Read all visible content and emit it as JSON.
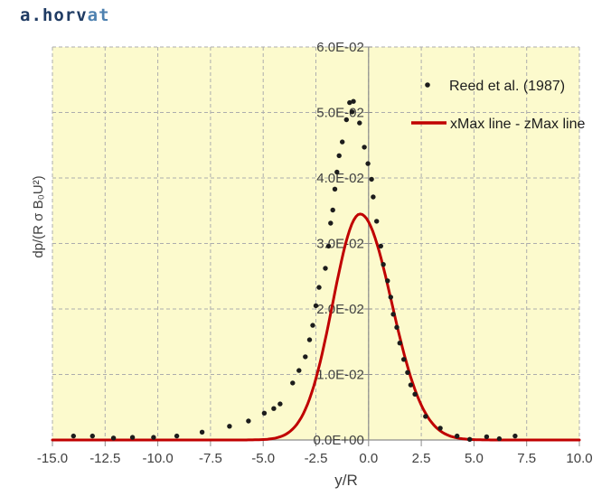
{
  "watermark": {
    "part1": "a.horv",
    "part2": "at"
  },
  "colors": {
    "plot_bg": "#FCFACD",
    "grid": "#ADADAD",
    "axis": "#8C8C8C",
    "tick_text": "#404040",
    "legend_text": "#1C1C1C",
    "marker": "#1C1C1C",
    "line_red": "#C00000",
    "watermark_dark": "#1F3B63",
    "watermark_light": "#4E81B0"
  },
  "chart_data": {
    "type": "scatter",
    "title": "",
    "xlabel": "y/R",
    "ylabel": "dp/(R σ B₀U²)",
    "xlim": [
      -15,
      10
    ],
    "ylim": [
      0,
      0.06
    ],
    "grid": "dashed",
    "legend_position": "top-right",
    "x_tick_values": [
      -15.0,
      -12.5,
      -10.0,
      -7.5,
      -5.0,
      -2.5,
      0.0,
      2.5,
      5.0,
      7.5,
      10.0
    ],
    "x_tick_labels": [
      "-15.0",
      "-12.5",
      "-10.0",
      "-7.5",
      "-5.0",
      "-2.5",
      "0.0",
      "2.5",
      "5.0",
      "7.5",
      "10.0"
    ],
    "y_tick_values": [
      0,
      0.01,
      0.02,
      0.03,
      0.04,
      0.05,
      0.06
    ],
    "y_tick_labels": [
      "0.0E+00",
      "1.0E-02",
      "2.0E-02",
      "3.0E-02",
      "4.0E-02",
      "5.0E-02",
      "6.0E-02"
    ],
    "series": [
      {
        "name": "Reed et al. (1987)",
        "type": "scatter",
        "marker": "dot",
        "color": "#1C1C1C",
        "points": [
          [
            -14.0,
            0.0006
          ],
          [
            -13.1,
            0.0006
          ],
          [
            -12.1,
            0.0003
          ],
          [
            -11.2,
            0.0004
          ],
          [
            -10.2,
            0.0004
          ],
          [
            -9.1,
            0.0006
          ],
          [
            -7.9,
            0.0012
          ],
          [
            -6.6,
            0.0021
          ],
          [
            -5.7,
            0.0029
          ],
          [
            -4.95,
            0.0041
          ],
          [
            -4.5,
            0.0048
          ],
          [
            -4.2,
            0.0055
          ],
          [
            -3.6,
            0.0087
          ],
          [
            -3.3,
            0.0106
          ],
          [
            -3.0,
            0.0127
          ],
          [
            -2.8,
            0.0153
          ],
          [
            -2.65,
            0.0175
          ],
          [
            -2.5,
            0.0205
          ],
          [
            -2.35,
            0.0233
          ],
          [
            -2.05,
            0.0262
          ],
          [
            -1.9,
            0.0296
          ],
          [
            -1.8,
            0.0331
          ],
          [
            -1.7,
            0.0351
          ],
          [
            -1.6,
            0.0383
          ],
          [
            -1.5,
            0.0409
          ],
          [
            -1.4,
            0.0434
          ],
          [
            -1.25,
            0.0455
          ],
          [
            -1.05,
            0.0489
          ],
          [
            -0.9,
            0.0515
          ],
          [
            -0.72,
            0.0517
          ],
          [
            -0.78,
            0.0501
          ],
          [
            -0.43,
            0.0484
          ],
          [
            -0.2,
            0.0447
          ],
          [
            -0.03,
            0.0422
          ],
          [
            0.14,
            0.0398
          ],
          [
            0.22,
            0.0371
          ],
          [
            0.38,
            0.0334
          ],
          [
            0.58,
            0.0296
          ],
          [
            0.7,
            0.0268
          ],
          [
            0.9,
            0.0243
          ],
          [
            1.05,
            0.0218
          ],
          [
            1.17,
            0.0192
          ],
          [
            1.34,
            0.0172
          ],
          [
            1.48,
            0.0148
          ],
          [
            1.67,
            0.0123
          ],
          [
            1.85,
            0.0103
          ],
          [
            2.0,
            0.0084
          ],
          [
            2.2,
            0.007
          ],
          [
            2.7,
            0.0036
          ],
          [
            3.4,
            0.0018
          ],
          [
            4.2,
            0.0006
          ],
          [
            4.8,
            0.0001
          ],
          [
            5.6,
            0.0005
          ],
          [
            6.2,
            0.0002
          ],
          [
            6.95,
            0.0006
          ]
        ]
      },
      {
        "name": "xMax line - zMax line",
        "type": "line",
        "color": "#C00000",
        "curve": {
          "shape": "gaussian",
          "amplitude": 0.0345,
          "center": -0.4,
          "sigma_left": 1.3,
          "sigma_right": 1.5,
          "x_range": [
            -15,
            10
          ]
        }
      }
    ]
  }
}
